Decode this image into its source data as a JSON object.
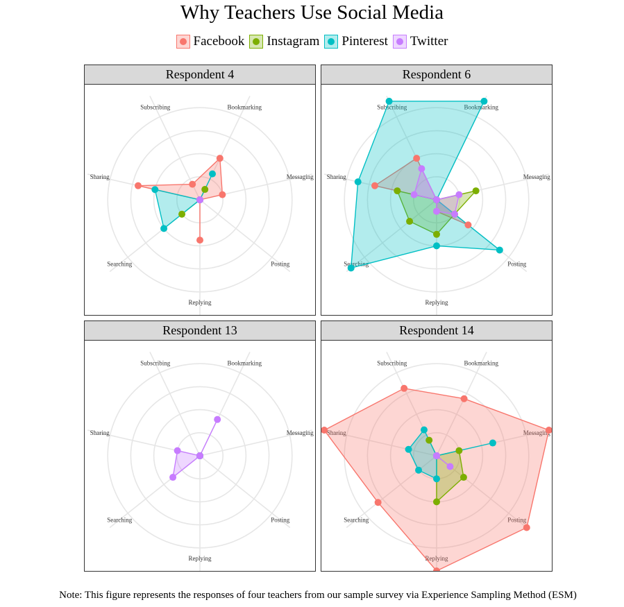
{
  "title": "Why Teachers Use Social Media",
  "note": "Note: This figure represents the responses of four teachers from our sample survey via Experience Sampling Method (ESM)",
  "legend": [
    {
      "name": "Facebook",
      "color": "#F8766D"
    },
    {
      "name": "Instagram",
      "color": "#7CAE00"
    },
    {
      "name": "Pinterest",
      "color": "#00BFC4"
    },
    {
      "name": "Twitter",
      "color": "#C77CFF"
    }
  ],
  "chart_data": {
    "type": "radar",
    "axes": [
      "Bookmarking",
      "Messaging",
      "Posting",
      "Replying",
      "Searching",
      "Sharing",
      "Subscribing"
    ],
    "rlim": [
      0,
      5
    ],
    "grid": true,
    "legend_position": "top",
    "panels": [
      {
        "title": "Respondent 4",
        "series": [
          {
            "name": "Facebook",
            "values": [
              2.0,
              1.0,
              0.0,
              1.75,
              0.0,
              2.75,
              0.75
            ]
          },
          {
            "name": "Instagram",
            "values": [
              0.5,
              0.0,
              0.0,
              0.0,
              1.0,
              0.0,
              0.0
            ]
          },
          {
            "name": "Pinterest",
            "values": [
              1.25,
              0.0,
              0.0,
              0.0,
              2.0,
              2.0,
              0.0
            ]
          },
          {
            "name": "Twitter",
            "values": [
              0.0,
              0.0,
              0.0,
              0.0,
              0.0,
              0.0,
              0.0
            ]
          }
        ]
      },
      {
        "title": "Respondent 6",
        "series": [
          {
            "name": "Facebook",
            "values": [
              0.0,
              0.0,
              1.75,
              0.5,
              0.0,
              2.75,
              2.0
            ]
          },
          {
            "name": "Instagram",
            "values": [
              0.0,
              1.75,
              1.0,
              1.5,
              1.5,
              1.75,
              0.0
            ]
          },
          {
            "name": "Pinterest",
            "values": [
              4.75,
              0.0,
              3.5,
              2.0,
              4.75,
              3.5,
              4.75
            ]
          },
          {
            "name": "Twitter",
            "values": [
              0.0,
              1.0,
              1.0,
              0.5,
              0.0,
              1.0,
              1.5
            ]
          }
        ]
      },
      {
        "title": "Respondent 13",
        "series": [
          {
            "name": "Facebook",
            "values": [
              0.0,
              0.0,
              0.0,
              0.0,
              0.0,
              0.0,
              0.0
            ]
          },
          {
            "name": "Instagram",
            "values": [
              0.0,
              0.0,
              0.0,
              0.0,
              0.0,
              0.0,
              0.0
            ]
          },
          {
            "name": "Pinterest",
            "values": [
              0.0,
              0.0,
              0.0,
              0.0,
              0.0,
              0.0,
              0.0
            ]
          },
          {
            "name": "Twitter",
            "values": [
              1.75,
              0.0,
              0.0,
              0.0,
              1.5,
              1.0,
              0.0
            ]
          }
        ]
      },
      {
        "title": "Respondent 14",
        "series": [
          {
            "name": "Facebook",
            "values": [
              2.75,
              5.0,
              5.0,
              5.0,
              3.25,
              5.0,
              3.25
            ]
          },
          {
            "name": "Instagram",
            "values": [
              0.0,
              1.0,
              1.5,
              2.0,
              0.0,
              0.0,
              0.75
            ]
          },
          {
            "name": "Pinterest",
            "values": [
              0.0,
              2.5,
              0.0,
              1.0,
              1.0,
              1.25,
              1.25
            ]
          },
          {
            "name": "Twitter",
            "values": [
              0.0,
              0.0,
              0.75,
              0.0,
              0.0,
              0.0,
              0.0
            ]
          }
        ]
      }
    ]
  }
}
